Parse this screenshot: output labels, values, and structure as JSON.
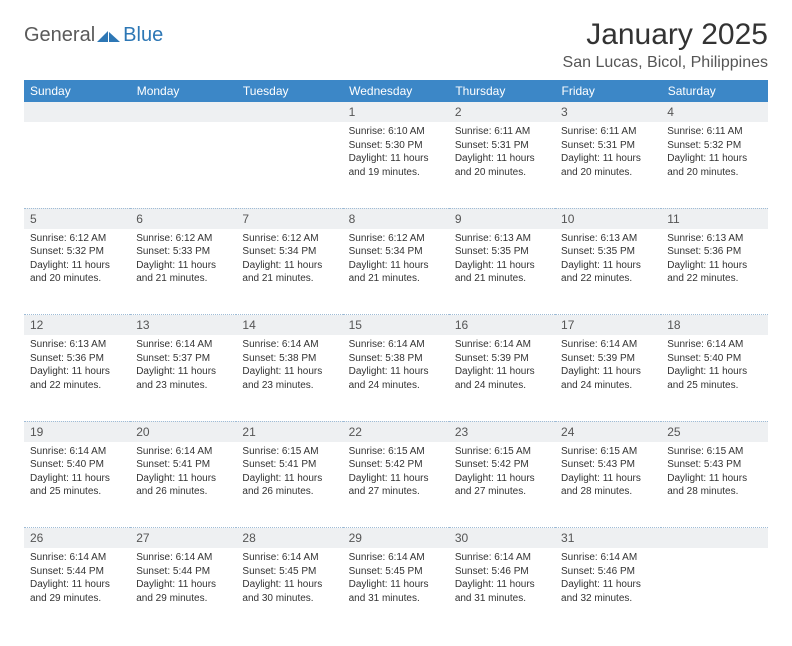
{
  "brand": {
    "part1": "General",
    "part2": "Blue"
  },
  "title": "January 2025",
  "location": "San Lucas, Bicol, Philippines",
  "colors": {
    "header_bg": "#3c87c7",
    "header_text": "#ffffff",
    "daynum_bg": "#eef0f2",
    "brand_gray": "#5a5a5a",
    "brand_blue": "#2d77b5",
    "border": "#3c87c7"
  },
  "weekdays": [
    "Sunday",
    "Monday",
    "Tuesday",
    "Wednesday",
    "Thursday",
    "Friday",
    "Saturday"
  ],
  "weeks": [
    [
      null,
      null,
      null,
      {
        "n": "1",
        "sr": "Sunrise: 6:10 AM",
        "ss": "Sunset: 5:30 PM",
        "d1": "Daylight: 11 hours",
        "d2": "and 19 minutes."
      },
      {
        "n": "2",
        "sr": "Sunrise: 6:11 AM",
        "ss": "Sunset: 5:31 PM",
        "d1": "Daylight: 11 hours",
        "d2": "and 20 minutes."
      },
      {
        "n": "3",
        "sr": "Sunrise: 6:11 AM",
        "ss": "Sunset: 5:31 PM",
        "d1": "Daylight: 11 hours",
        "d2": "and 20 minutes."
      },
      {
        "n": "4",
        "sr": "Sunrise: 6:11 AM",
        "ss": "Sunset: 5:32 PM",
        "d1": "Daylight: 11 hours",
        "d2": "and 20 minutes."
      }
    ],
    [
      {
        "n": "5",
        "sr": "Sunrise: 6:12 AM",
        "ss": "Sunset: 5:32 PM",
        "d1": "Daylight: 11 hours",
        "d2": "and 20 minutes."
      },
      {
        "n": "6",
        "sr": "Sunrise: 6:12 AM",
        "ss": "Sunset: 5:33 PM",
        "d1": "Daylight: 11 hours",
        "d2": "and 21 minutes."
      },
      {
        "n": "7",
        "sr": "Sunrise: 6:12 AM",
        "ss": "Sunset: 5:34 PM",
        "d1": "Daylight: 11 hours",
        "d2": "and 21 minutes."
      },
      {
        "n": "8",
        "sr": "Sunrise: 6:12 AM",
        "ss": "Sunset: 5:34 PM",
        "d1": "Daylight: 11 hours",
        "d2": "and 21 minutes."
      },
      {
        "n": "9",
        "sr": "Sunrise: 6:13 AM",
        "ss": "Sunset: 5:35 PM",
        "d1": "Daylight: 11 hours",
        "d2": "and 21 minutes."
      },
      {
        "n": "10",
        "sr": "Sunrise: 6:13 AM",
        "ss": "Sunset: 5:35 PM",
        "d1": "Daylight: 11 hours",
        "d2": "and 22 minutes."
      },
      {
        "n": "11",
        "sr": "Sunrise: 6:13 AM",
        "ss": "Sunset: 5:36 PM",
        "d1": "Daylight: 11 hours",
        "d2": "and 22 minutes."
      }
    ],
    [
      {
        "n": "12",
        "sr": "Sunrise: 6:13 AM",
        "ss": "Sunset: 5:36 PM",
        "d1": "Daylight: 11 hours",
        "d2": "and 22 minutes."
      },
      {
        "n": "13",
        "sr": "Sunrise: 6:14 AM",
        "ss": "Sunset: 5:37 PM",
        "d1": "Daylight: 11 hours",
        "d2": "and 23 minutes."
      },
      {
        "n": "14",
        "sr": "Sunrise: 6:14 AM",
        "ss": "Sunset: 5:38 PM",
        "d1": "Daylight: 11 hours",
        "d2": "and 23 minutes."
      },
      {
        "n": "15",
        "sr": "Sunrise: 6:14 AM",
        "ss": "Sunset: 5:38 PM",
        "d1": "Daylight: 11 hours",
        "d2": "and 24 minutes."
      },
      {
        "n": "16",
        "sr": "Sunrise: 6:14 AM",
        "ss": "Sunset: 5:39 PM",
        "d1": "Daylight: 11 hours",
        "d2": "and 24 minutes."
      },
      {
        "n": "17",
        "sr": "Sunrise: 6:14 AM",
        "ss": "Sunset: 5:39 PM",
        "d1": "Daylight: 11 hours",
        "d2": "and 24 minutes."
      },
      {
        "n": "18",
        "sr": "Sunrise: 6:14 AM",
        "ss": "Sunset: 5:40 PM",
        "d1": "Daylight: 11 hours",
        "d2": "and 25 minutes."
      }
    ],
    [
      {
        "n": "19",
        "sr": "Sunrise: 6:14 AM",
        "ss": "Sunset: 5:40 PM",
        "d1": "Daylight: 11 hours",
        "d2": "and 25 minutes."
      },
      {
        "n": "20",
        "sr": "Sunrise: 6:14 AM",
        "ss": "Sunset: 5:41 PM",
        "d1": "Daylight: 11 hours",
        "d2": "and 26 minutes."
      },
      {
        "n": "21",
        "sr": "Sunrise: 6:15 AM",
        "ss": "Sunset: 5:41 PM",
        "d1": "Daylight: 11 hours",
        "d2": "and 26 minutes."
      },
      {
        "n": "22",
        "sr": "Sunrise: 6:15 AM",
        "ss": "Sunset: 5:42 PM",
        "d1": "Daylight: 11 hours",
        "d2": "and 27 minutes."
      },
      {
        "n": "23",
        "sr": "Sunrise: 6:15 AM",
        "ss": "Sunset: 5:42 PM",
        "d1": "Daylight: 11 hours",
        "d2": "and 27 minutes."
      },
      {
        "n": "24",
        "sr": "Sunrise: 6:15 AM",
        "ss": "Sunset: 5:43 PM",
        "d1": "Daylight: 11 hours",
        "d2": "and 28 minutes."
      },
      {
        "n": "25",
        "sr": "Sunrise: 6:15 AM",
        "ss": "Sunset: 5:43 PM",
        "d1": "Daylight: 11 hours",
        "d2": "and 28 minutes."
      }
    ],
    [
      {
        "n": "26",
        "sr": "Sunrise: 6:14 AM",
        "ss": "Sunset: 5:44 PM",
        "d1": "Daylight: 11 hours",
        "d2": "and 29 minutes."
      },
      {
        "n": "27",
        "sr": "Sunrise: 6:14 AM",
        "ss": "Sunset: 5:44 PM",
        "d1": "Daylight: 11 hours",
        "d2": "and 29 minutes."
      },
      {
        "n": "28",
        "sr": "Sunrise: 6:14 AM",
        "ss": "Sunset: 5:45 PM",
        "d1": "Daylight: 11 hours",
        "d2": "and 30 minutes."
      },
      {
        "n": "29",
        "sr": "Sunrise: 6:14 AM",
        "ss": "Sunset: 5:45 PM",
        "d1": "Daylight: 11 hours",
        "d2": "and 31 minutes."
      },
      {
        "n": "30",
        "sr": "Sunrise: 6:14 AM",
        "ss": "Sunset: 5:46 PM",
        "d1": "Daylight: 11 hours",
        "d2": "and 31 minutes."
      },
      {
        "n": "31",
        "sr": "Sunrise: 6:14 AM",
        "ss": "Sunset: 5:46 PM",
        "d1": "Daylight: 11 hours",
        "d2": "and 32 minutes."
      },
      null
    ]
  ]
}
